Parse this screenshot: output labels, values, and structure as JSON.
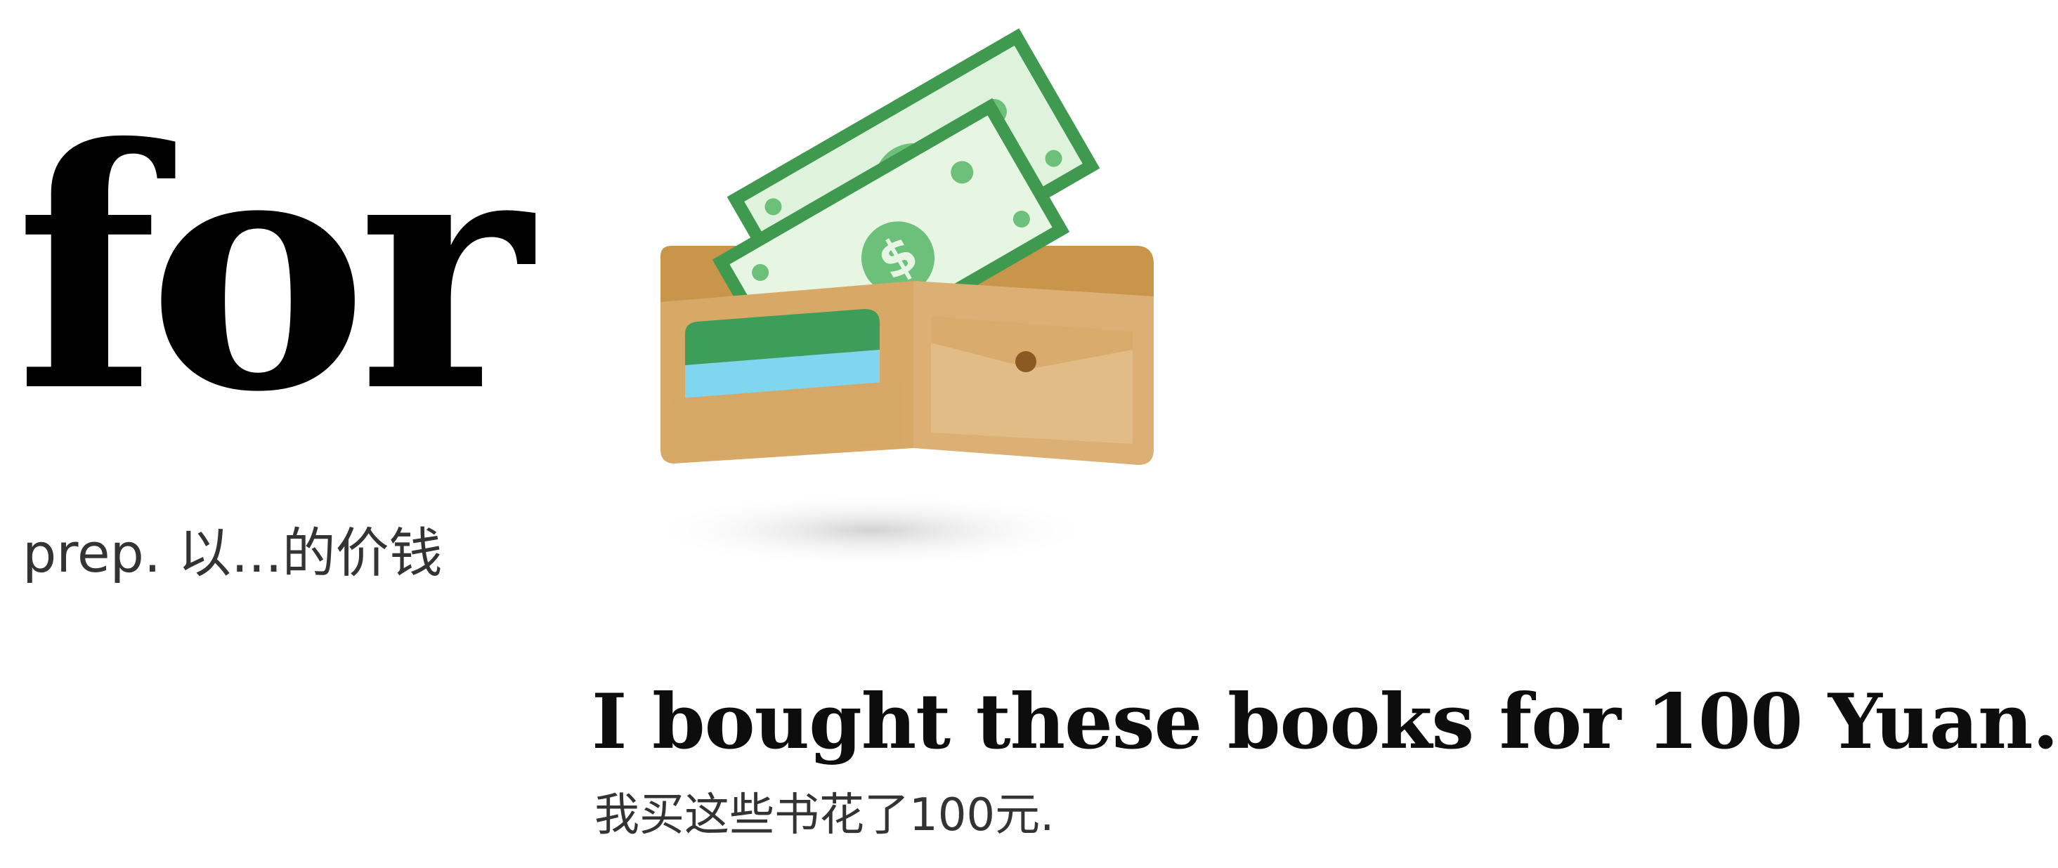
{
  "vocab": {
    "word": "for",
    "pos_label": "prep. 以...的价钱"
  },
  "illustration": {
    "icon": "wallet-with-dollar-bills-icon",
    "bill_symbol": "$",
    "colors": {
      "bill_border": "#3f9a4f",
      "bill_fill": "#dff3dc",
      "bill_accent": "#6cc07a",
      "wallet_back": "#c8954a",
      "wallet_front": "#dcb074",
      "card_green": "#3d9e5a",
      "card_blue": "#7fd6ee",
      "shadow": "#d9d9d9"
    }
  },
  "example": {
    "sentence": "I bought these books for 100 Yuan.",
    "translation": "我买这些书花了100元."
  }
}
